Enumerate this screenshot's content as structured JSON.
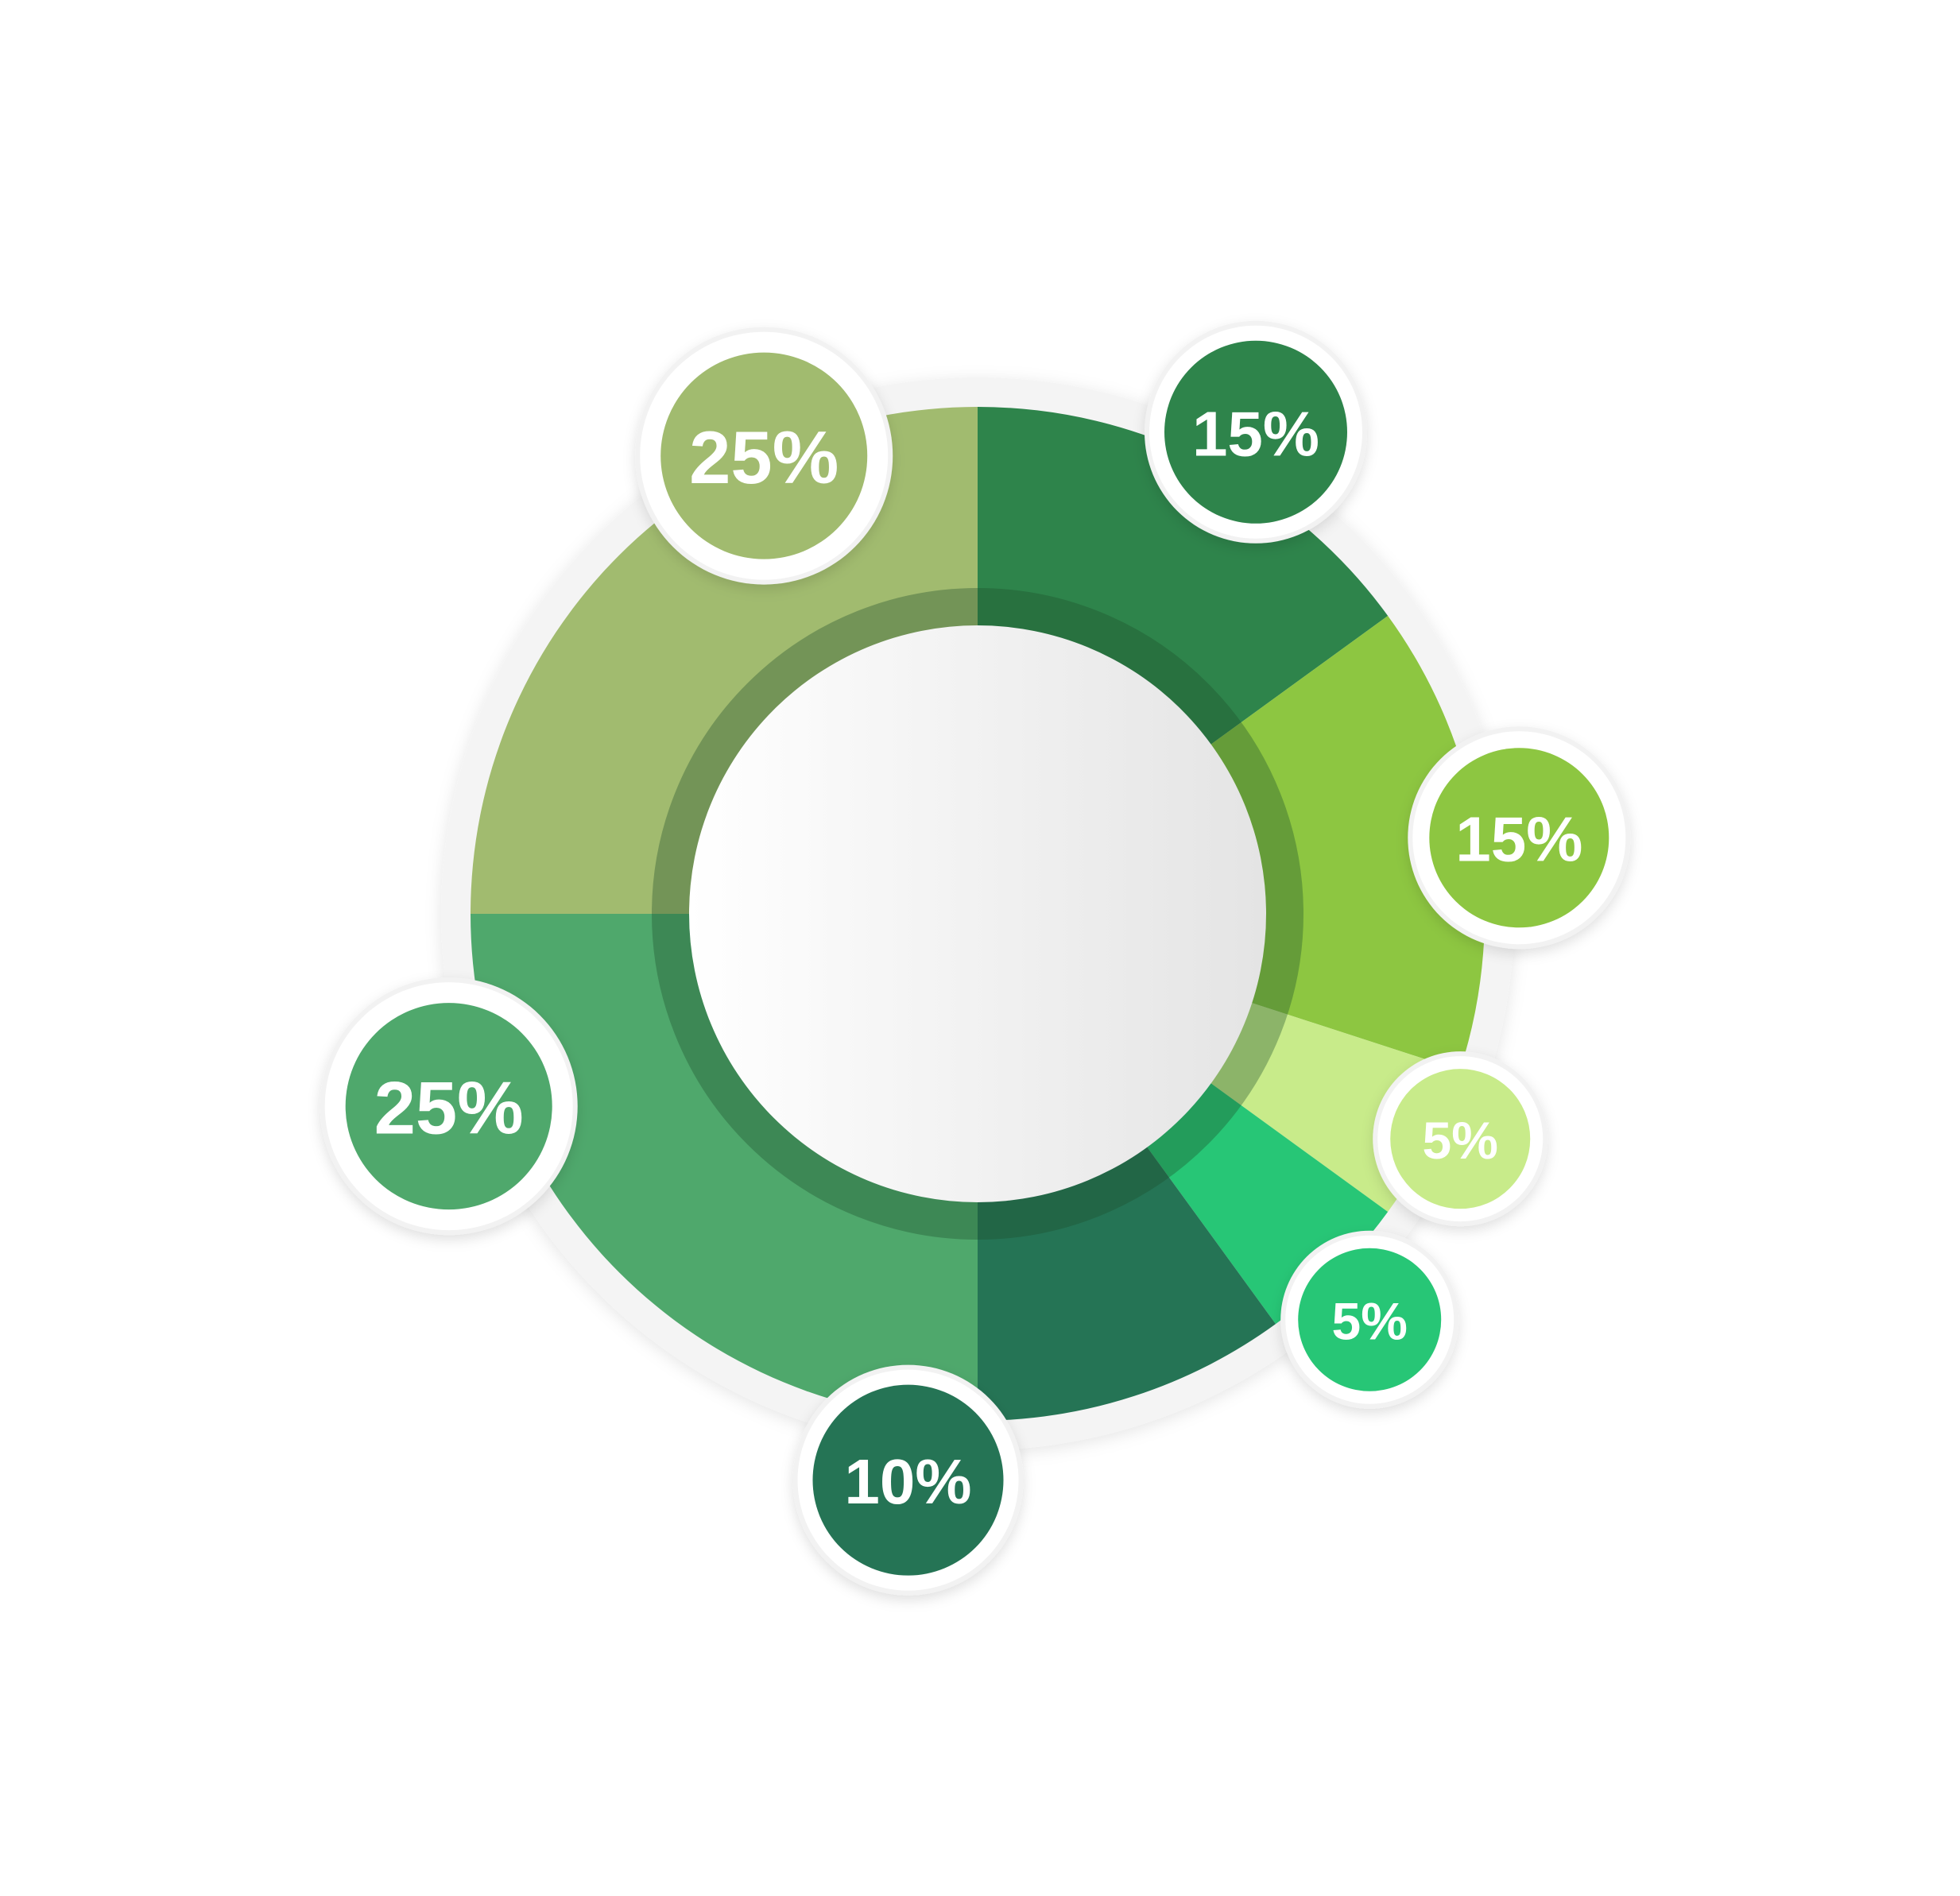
{
  "chart_data": {
    "type": "pie",
    "variant": "donut",
    "title": "",
    "legend": "none",
    "grid": false,
    "slices": [
      {
        "value": 15,
        "label": "15%",
        "color": "#2e844b"
      },
      {
        "value": 15,
        "label": "15%",
        "color": "#8dc641"
      },
      {
        "value": 5,
        "label": "5%",
        "color": "#c8eb8a"
      },
      {
        "value": 5,
        "label": "5%",
        "color": "#27c676"
      },
      {
        "value": 10,
        "label": "10%",
        "color": "#257455"
      },
      {
        "value": 25,
        "label": "25%",
        "color": "#4fa86c"
      },
      {
        "value": 25,
        "label": "25%",
        "color": "#a1bb6f"
      }
    ]
  }
}
